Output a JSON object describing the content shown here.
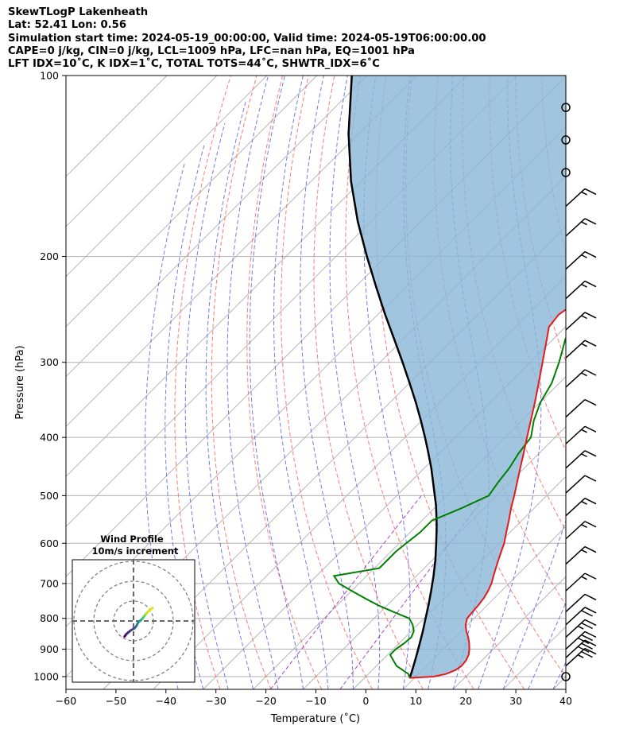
{
  "header": {
    "line1": "SkewTLogP Lakenheath",
    "line2": "Lat: 52.41   Lon: 0.56",
    "line3": "Simulation start time: 2024-05-19_00:00:00, Valid time: 2024-05-19T06:00:00.00",
    "line4": "CAPE=0 j/kg, CIN=0 j/kg, LCL=1009 hPa, LFC=nan hPa, EQ=1001 hPa",
    "line5": "LFT IDX=10˚C, K IDX=1˚C, TOTAL TOTS=44˚C, SHWTR_IDX=6˚C"
  },
  "chart_data": {
    "type": "line",
    "subtype": "skew-t log-p",
    "xlabel": "Temperature (˚C)",
    "ylabel": "Pressure (hPa)",
    "xlim": [
      -60,
      40
    ],
    "ylim": [
      1050,
      100
    ],
    "yscale": "log",
    "x_ticks": [
      "−60",
      "−50",
      "−40",
      "−30",
      "−20",
      "−10",
      "0",
      "10",
      "20",
      "30",
      "40"
    ],
    "x_tick_values": [
      -60,
      -50,
      -40,
      -30,
      -20,
      -10,
      0,
      10,
      20,
      30,
      40
    ],
    "y_ticks": [
      "100",
      "200",
      "300",
      "400",
      "500",
      "600",
      "700",
      "800",
      "900",
      "1000"
    ],
    "y_tick_values": [
      100,
      200,
      300,
      400,
      500,
      600,
      700,
      800,
      900,
      1000
    ],
    "grid": true,
    "colors": {
      "temperature": "#e41a1c",
      "dewpoint": "#008000",
      "parcel": "#000000",
      "shading": "#8ab6d6",
      "isotherms": "#b0b0b0",
      "dry_adiabats": "#ff5555",
      "moist_adiabats": "#4a5ae8",
      "mixing_ratio": "#9b30c8"
    },
    "series": [
      {
        "key": "temperature",
        "pressure": [
          1005,
          1000,
          990,
          975,
          960,
          940,
          920,
          900,
          880,
          860,
          840,
          820,
          800,
          780,
          760,
          740,
          720,
          700,
          680,
          660,
          640,
          620,
          600,
          575,
          550,
          525,
          500,
          475,
          450,
          425,
          400,
          375,
          350,
          325,
          300,
          275,
          262,
          250,
          240,
          230,
          220,
          210,
          200,
          190,
          180,
          170,
          160,
          150,
          140,
          130,
          120,
          110,
          100
        ],
        "values": [
          9.0,
          13.5,
          15.5,
          16.6,
          17.0,
          16.8,
          16.2,
          15.2,
          14.0,
          12.6,
          11.0,
          9.6,
          8.6,
          8.4,
          8.2,
          7.9,
          7.3,
          6.5,
          5.4,
          4.3,
          3.2,
          2.1,
          1.0,
          -0.8,
          -2.6,
          -4.6,
          -6.5,
          -8.6,
          -10.8,
          -13.1,
          -15.6,
          -18.2,
          -21.0,
          -24.1,
          -27.5,
          -31.2,
          -33.3,
          -33.8,
          -33.0,
          -31.8,
          -30.2,
          -28.6,
          -27.0,
          -25.8,
          -24.5,
          -23.3,
          -22.2,
          -21.4,
          -20.9,
          -20.5,
          -20.0,
          -20.0,
          -20.0
        ]
      },
      {
        "key": "dewpoint",
        "pressure": [
          1005,
          990,
          960,
          920,
          900,
          880,
          860,
          840,
          820,
          800,
          780,
          760,
          740,
          720,
          700,
          680,
          660,
          640,
          620,
          600,
          575,
          550,
          525,
          500,
          475,
          450,
          425,
          400,
          375,
          350,
          325,
          300,
          275,
          250,
          225,
          210,
          200,
          190,
          180,
          170,
          160,
          150,
          140,
          130,
          120,
          110,
          100
        ],
        "values": [
          9.0,
          8.0,
          4.0,
          0.5,
          0.5,
          1.0,
          1.2,
          0.5,
          -1.0,
          -3.0,
          -7.5,
          -12.0,
          -16.0,
          -20.0,
          -24.0,
          -26.5,
          -19.0,
          -19.0,
          -19.0,
          -18.6,
          -18.0,
          -18.0,
          -14.6,
          -11.6,
          -12.4,
          -13.0,
          -14.1,
          -14.8,
          -17.6,
          -19.9,
          -21.5,
          -24.2,
          -27.5,
          -30.2,
          -32.1,
          -33.0,
          -35.3,
          -37.8,
          -40.5,
          -43.5,
          -45.0,
          -45.0,
          -45.0,
          -45.0,
          -45.0,
          -45.0,
          -45.0
        ]
      },
      {
        "key": "parcel",
        "pressure": [
          1005,
          990,
          960,
          920,
          880,
          840,
          800,
          760,
          720,
          680,
          640,
          600,
          560,
          520,
          500,
          480,
          450,
          420,
          400,
          375,
          350,
          325,
          300,
          275,
          250,
          225,
          200,
          175,
          150,
          125,
          100
        ],
        "values": [
          9.0,
          8.5,
          7.4,
          5.8,
          4.1,
          2.3,
          0.3,
          -1.8,
          -4.1,
          -6.6,
          -9.4,
          -12.6,
          -16.1,
          -20.1,
          -22.4,
          -24.8,
          -28.6,
          -32.9,
          -36.0,
          -40.2,
          -44.8,
          -49.9,
          -55.5,
          -61.7,
          -68.5,
          -75.8,
          -83.8,
          -92.6,
          -102.0,
          -112.0,
          -123.0
        ]
      }
    ],
    "barbs": {
      "pressure": [
        1000,
        960,
        930,
        900,
        860,
        820,
        780,
        720,
        650,
        590,
        540,
        495,
        450,
        410,
        370,
        330,
        295,
        265,
        235,
        210,
        185,
        165,
        145,
        128,
        113
      ],
      "speed_kt": [
        0,
        25,
        30,
        30,
        25,
        20,
        10,
        15,
        15,
        15,
        15,
        10,
        15,
        15,
        10,
        15,
        15,
        15,
        15,
        15,
        15,
        15,
        0,
        0,
        0
      ]
    },
    "hodograph": {
      "title": "Wind Profile",
      "subtitle": "10m/s increment",
      "u": [
        -1.5,
        -1.2,
        -0.5,
        0.2,
        0.5,
        0.8,
        1.2,
        1.5,
        1.8,
        2.1,
        2.5,
        2.8,
        3.2
      ],
      "v": [
        -2.6,
        -2.2,
        -1.6,
        -1.2,
        -0.8,
        -0.2,
        0.1,
        0.4,
        0.8,
        1.2,
        1.6,
        1.9,
        2.2
      ]
    }
  }
}
